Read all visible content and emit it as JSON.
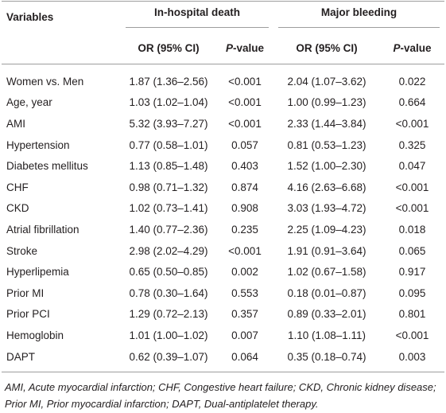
{
  "table": {
    "header": {
      "variables": "Variables",
      "groups": [
        "In-hospital death",
        "Major bleeding"
      ],
      "subheaders": [
        "OR (95% CI)",
        "P-value",
        "OR (95% CI)",
        "P-value"
      ]
    },
    "rows": [
      [
        "Women vs. Men",
        "1.87 (1.36–2.56)",
        "<0.001",
        "2.04 (1.07–3.62)",
        "0.022"
      ],
      [
        "Age, year",
        "1.03 (1.02–1.04)",
        "<0.001",
        "1.00 (0.99–1.23)",
        "0.664"
      ],
      [
        "AMI",
        "5.32 (3.93–7.27)",
        "<0.001",
        "2.33 (1.44–3.84)",
        "<0.001"
      ],
      [
        "Hypertension",
        "0.77 (0.58–1.01)",
        "0.057",
        "0.81 (0.53–1.23)",
        "0.325"
      ],
      [
        "Diabetes mellitus",
        "1.13 (0.85–1.48)",
        "0.403",
        "1.52 (1.00–2.30)",
        "0.047"
      ],
      [
        "CHF",
        "0.98 (0.71–1.32)",
        "0.874",
        "4.16 (2.63–6.68)",
        "<0.001"
      ],
      [
        "CKD",
        "1.02 (0.73–1.41)",
        "0.908",
        "3.03 (1.93–4.72)",
        "<0.001"
      ],
      [
        "Atrial fibrillation",
        "1.40 (0.77–2.36)",
        "0.235",
        "2.25 (1.09–4.23)",
        "0.018"
      ],
      [
        "Stroke",
        "2.98 (2.02–4.29)",
        "<0.001",
        "1.91 (0.91–3.64)",
        "0.065"
      ],
      [
        "Hyperlipemia",
        "0.65 (0.50–0.85)",
        "0.002",
        "1.02 (0.67–1.58)",
        "0.917"
      ],
      [
        "Prior MI",
        "0.78 (0.30–1.64)",
        "0.553",
        "0.18 (0.01–0.87)",
        "0.095"
      ],
      [
        "Prior PCI",
        "1.29 (0.72–2.13)",
        "0.357",
        "0.89 (0.33–2.01)",
        "0.801"
      ],
      [
        "Hemoglobin",
        "1.01 (1.00–1.02)",
        "0.007",
        "1.10 (1.08–1.11)",
        "<0.001"
      ],
      [
        "DAPT",
        "0.62 (0.39–1.07)",
        "0.064",
        "0.35 (0.18–0.74)",
        "0.003"
      ]
    ],
    "footnote": "AMI, Acute myocardial infarction; CHF, Congestive heart failure; CKD, Chronic kidney disease; Prior MI, Prior myocardial infarction; DAPT, Dual-antiplatelet therapy."
  }
}
